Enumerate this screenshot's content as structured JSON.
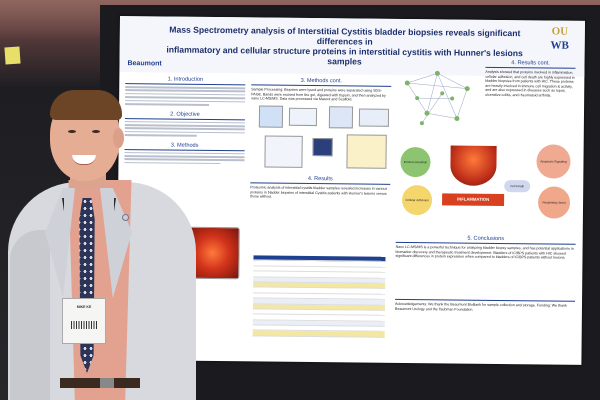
{
  "photo": {
    "description_tag": "poster-presentation-photo"
  },
  "poster": {
    "title_line1": "Mass Spectrometry analysis of Interstitial Cystitis bladder biopsies reveals significant differences in",
    "title_line2": "inflammatory and cellular structure proteins in interstitial cystitis with Hunner's lesions samples",
    "brand_left": "Beaumont",
    "logo_top": "OU",
    "logo_bottom": "WB",
    "sections": {
      "intro": "1. Introduction",
      "objective": "2. Objective",
      "methods": "3. Methods",
      "methods_cont": "3. Methods cont.",
      "results": "4. Results",
      "results_cont": "4. Results cont.",
      "conclusions": "5. Conclusions"
    },
    "methods_cont_text": "Sample Processing: Biopsies were lysed and proteins were separated using SDS-PAGE. Bands were excised from the gel, digested with trypsin, and then analyzed by nano LC-MS/MS. Data was processed via Mascot and Scaffold.",
    "results_text": "Proteomic analysis of interstitial cystitis bladder samples revealed increases in various proteins in bladder biopsies of interstitial Cystitis patients with Hunner's lesions versus those without.",
    "results_cont_text": "Analysis showed that proteins involved in inflammation, cellular adhesion, and cell death are highly expressed in bladder biopsies from patients with HIC. These proteins are heavily involved in immune cell migration & activity, and are also expressed in diseases such as lupus, ulcerative colitis, and rheumatoid arthritis.",
    "conclusions_text": "Nano LC-MS/MS is a powerful technique for analyzing bladder biopsy samples, and has potential applications in biomarker discovery and therapeutic treatment development. Bladders of IC/BPS patients with HIC showed significant differences in protein expression when compared to bladders of IC/BPS patients without lesions.",
    "ack_text": "Acknowledgements: We thank the Beaumont BioBank for sample collection and storage. Funding: We thank Beaumont Urology and the Taubman Foundation.",
    "inflammation_label": "INFLAMMATION",
    "bubbles": [
      "Immune Reaction",
      "Apoptosis Signaling",
      "Cell Death",
      "Cellular Adhesion",
      "Respiratory Burst"
    ]
  },
  "badge": {
    "name_line": "MIKE KE"
  }
}
